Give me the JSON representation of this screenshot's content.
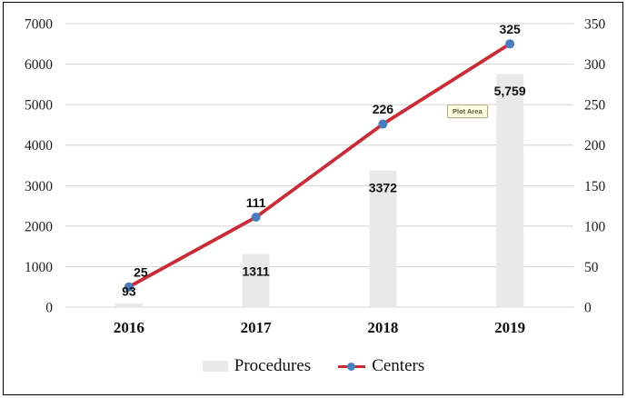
{
  "window": {
    "background": "#ffffff",
    "frame_border_color": "#000000"
  },
  "chart_data": {
    "type": "combo",
    "title": "",
    "categories": [
      "2016",
      "2017",
      "2018",
      "2019"
    ],
    "series": [
      {
        "name": "Procedures",
        "type": "bar",
        "axis": "left",
        "values": [
          93,
          1311,
          3372,
          5759
        ],
        "data_labels": [
          "93",
          "1311",
          "3372",
          "5,759"
        ],
        "color": "#e9e9e9"
      },
      {
        "name": "Centers",
        "type": "line",
        "axis": "right",
        "values": [
          25,
          111,
          226,
          325
        ],
        "data_labels": [
          "25",
          "111",
          "226",
          "325"
        ],
        "line_color": "#c82d37",
        "marker_color": "#4b7dbe"
      }
    ],
    "axes": {
      "left": {
        "min": 0,
        "max": 7000,
        "step": 1000,
        "tick_labels": [
          "0",
          "1000",
          "2000",
          "3000",
          "4000",
          "5000",
          "6000",
          "7000"
        ]
      },
      "right": {
        "min": 0,
        "max": 350,
        "step": 50,
        "tick_labels": [
          "0",
          "50",
          "100",
          "150",
          "200",
          "250",
          "300",
          "350"
        ]
      }
    },
    "grid": true,
    "legend_position": "bottom"
  },
  "legend": {
    "items": [
      {
        "label": "Procedures",
        "swatch": "gray-bar"
      },
      {
        "label": "Centers",
        "swatch": "red-line-blue-marker"
      }
    ]
  },
  "tooltip": {
    "label": "Plot Area"
  },
  "colors": {
    "grid": "#d7d7d7",
    "axis_text": "#1c1c1c",
    "bar_fill": "#e9e9e9",
    "line": "#c82d37",
    "marker": "#4b7dbe",
    "tooltip_bg": "#ffffe1",
    "tooltip_border": "#b3ab8e",
    "tooltip_text": "#5b5a45"
  }
}
